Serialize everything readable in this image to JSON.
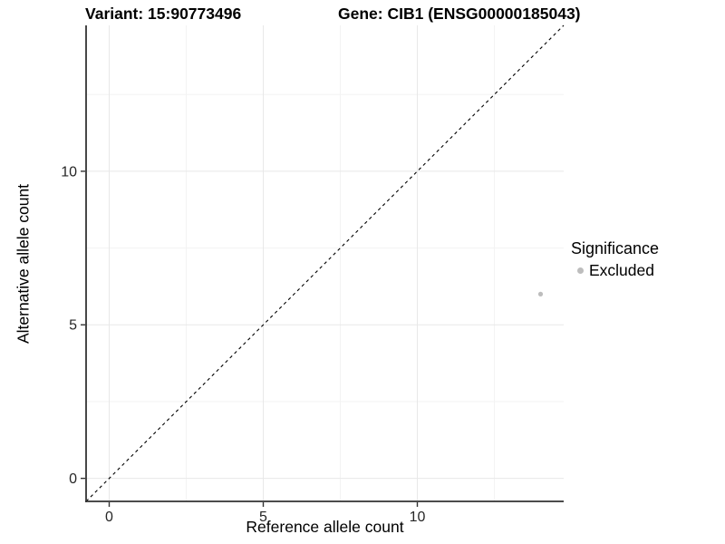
{
  "chart_data": {
    "type": "scatter",
    "title_left": "Variant: 15:90773496",
    "title_right": "Gene: CIB1 (ENSG00000185043)",
    "xlabel": "Reference allele count",
    "ylabel": "Alternative allele count",
    "xlim": [
      -0.75,
      14.75
    ],
    "ylim": [
      -0.75,
      14.75
    ],
    "x_breaks": [
      0,
      5,
      10
    ],
    "y_breaks": [
      0,
      5,
      10
    ],
    "x_minor_breaks": [
      2.5,
      7.5,
      12.5
    ],
    "y_minor_breaks": [
      2.5,
      7.5,
      12.5
    ],
    "grid": true,
    "points": [
      {
        "x": 14,
        "y": 6,
        "significance": "Excluded"
      }
    ],
    "reference_line": {
      "name": "identity-line",
      "slope": 1,
      "intercept": 0,
      "linetype": "dashed",
      "color": "#000000"
    },
    "legend": {
      "title": "Significance",
      "position": "right",
      "entries": [
        {
          "label": "Excluded",
          "color": "#bdbdbd"
        }
      ]
    },
    "colors": {
      "point": "#bdbdbd",
      "grid_major": "#e8e8e8",
      "grid_minor": "#f3f3f3",
      "axis_line": "#333333",
      "tick": "#333333",
      "background": "#ffffff"
    }
  }
}
